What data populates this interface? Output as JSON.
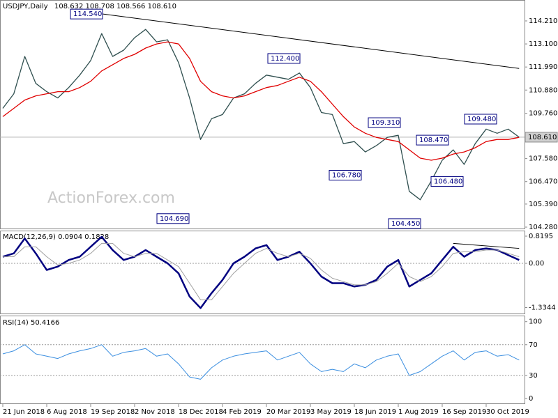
{
  "chart_data": [
    {
      "type": "line",
      "title": "USDJPY,Daily",
      "ohlc": "108.632 108.708 108.566 108.610",
      "watermark": "ActionForex.com",
      "categories": [
        "21 Jun 2018",
        null,
        null,
        null,
        "6 Aug 2018",
        null,
        null,
        null,
        "19 Sep 2018",
        null,
        null,
        null,
        "2 Nov 2018",
        null,
        null,
        null,
        "18 Dec 2018",
        null,
        null,
        null,
        "4 Feb 2019",
        null,
        null,
        null,
        "20 Mar 2019",
        null,
        null,
        null,
        "3 May 2019",
        null,
        null,
        null,
        "18 Jun 2019",
        null,
        null,
        null,
        "1 Aug 2019",
        null,
        null,
        null,
        "16 Sep 2019",
        null,
        null,
        null,
        "30 Oct 2019",
        null,
        null,
        null
      ],
      "series": [
        {
          "color": "#2f4f4f",
          "values": [
            110.0,
            110.7,
            112.5,
            111.2,
            110.8,
            110.5,
            111.0,
            111.6,
            112.3,
            113.6,
            112.5,
            112.8,
            113.4,
            113.8,
            113.2,
            113.3,
            112.2,
            110.5,
            108.5,
            109.5,
            109.7,
            110.5,
            110.7,
            111.2,
            111.6,
            111.5,
            111.4,
            111.7,
            111.0,
            109.8,
            109.7,
            108.3,
            108.4,
            107.9,
            108.2,
            108.6,
            108.7,
            106.0,
            105.6,
            106.5,
            107.5,
            108.0,
            107.3,
            108.3,
            109.0,
            108.8,
            109.0,
            108.61
          ]
        },
        {
          "color": "#e00000",
          "values": [
            109.6,
            110.0,
            110.4,
            110.6,
            110.7,
            110.8,
            110.8,
            111.0,
            111.3,
            111.8,
            112.1,
            112.4,
            112.6,
            112.9,
            113.1,
            113.2,
            113.1,
            112.4,
            111.3,
            110.8,
            110.6,
            110.5,
            110.6,
            110.8,
            111.0,
            111.1,
            111.3,
            111.5,
            111.3,
            110.8,
            110.2,
            109.6,
            109.1,
            108.8,
            108.6,
            108.5,
            108.4,
            108.0,
            107.6,
            107.5,
            107.6,
            107.8,
            107.9,
            108.1,
            108.4,
            108.5,
            108.5,
            108.6
          ]
        }
      ],
      "trendline": {
        "color": "#000000",
        "points": [
          {
            "i": 9,
            "value": 114.55
          },
          {
            "i": 47,
            "value": 111.92
          }
        ]
      },
      "annotations": [
        {
          "value": 114.54,
          "label": "114.540"
        },
        {
          "value": 104.69,
          "label": "104.690"
        },
        {
          "value": 112.4,
          "label": "112.400"
        },
        {
          "value": 109.31,
          "label": "109.310"
        },
        {
          "value": 106.78,
          "label": "106.780"
        },
        {
          "value": 108.47,
          "label": "108.470"
        },
        {
          "value": 106.48,
          "label": "106.480"
        },
        {
          "value": 104.45,
          "label": "104.450"
        },
        {
          "value": 109.48,
          "label": "109.480"
        }
      ],
      "last_price": {
        "value": 108.61,
        "label": "108.610"
      },
      "ylim": [
        104.213,
        115.216
      ],
      "yticks": [
        {
          "value": 114.21,
          "label": "114.210"
        },
        {
          "value": 113.1,
          "label": "113.100"
        },
        {
          "value": 111.99,
          "label": "111.990"
        },
        {
          "value": 110.88,
          "label": "110.880"
        },
        {
          "value": 109.76,
          "label": "109.760"
        },
        {
          "value": 107.58,
          "label": "107.580"
        },
        {
          "value": 106.47,
          "label": "106.470"
        },
        {
          "value": 105.39,
          "label": "105.390"
        },
        {
          "value": 104.28,
          "label": "104.280"
        }
      ]
    },
    {
      "type": "line",
      "title": "MACD(12,26,9) 0.0904 0.1828",
      "series": [
        {
          "color": "#000080",
          "width": 2.5,
          "values": [
            0.2,
            0.3,
            0.75,
            0.3,
            -0.2,
            -0.1,
            0.1,
            0.2,
            0.5,
            0.8,
            0.4,
            0.1,
            0.2,
            0.4,
            0.2,
            0.0,
            -0.3,
            -1.0,
            -1.35,
            -0.9,
            -0.5,
            0.0,
            0.2,
            0.45,
            0.55,
            0.1,
            0.2,
            0.35,
            0.0,
            -0.4,
            -0.6,
            -0.6,
            -0.7,
            -0.65,
            -0.5,
            -0.1,
            0.1,
            -0.7,
            -0.5,
            -0.3,
            0.1,
            0.5,
            0.2,
            0.4,
            0.45,
            0.4,
            0.25,
            0.1
          ]
        },
        {
          "color": "#a0a0a0",
          "width": 1,
          "values": [
            0.2,
            0.2,
            0.5,
            0.5,
            0.2,
            -0.05,
            0.0,
            0.1,
            0.3,
            0.6,
            0.6,
            0.3,
            0.2,
            0.3,
            0.3,
            0.1,
            -0.1,
            -0.6,
            -1.1,
            -1.1,
            -0.7,
            -0.3,
            0.0,
            0.3,
            0.45,
            0.3,
            0.2,
            0.3,
            0.15,
            -0.2,
            -0.45,
            -0.55,
            -0.65,
            -0.65,
            -0.55,
            -0.3,
            0.0,
            -0.4,
            -0.55,
            -0.4,
            -0.1,
            0.3,
            0.35,
            0.35,
            0.4,
            0.4,
            0.3,
            0.2
          ]
        }
      ],
      "trendline": {
        "color": "#000000",
        "points": [
          {
            "i": 41,
            "value": 0.6
          },
          {
            "i": 47,
            "value": 0.45
          }
        ]
      },
      "levels": [
        0
      ],
      "ylim": [
        -1.513,
        0.966
      ],
      "yticks": [
        0.8195,
        {
          "value": 0,
          "label": "0.00"
        },
        -1.3344
      ]
    },
    {
      "type": "line",
      "title": "RSI(14) 50.4166",
      "series": [
        {
          "color": "#3a8ee0",
          "width": 1,
          "values": [
            58,
            62,
            70,
            58,
            55,
            52,
            58,
            62,
            65,
            70,
            55,
            60,
            62,
            65,
            55,
            58,
            45,
            28,
            25,
            40,
            50,
            55,
            58,
            60,
            62,
            50,
            55,
            60,
            45,
            35,
            38,
            35,
            45,
            40,
            50,
            55,
            58,
            30,
            35,
            45,
            55,
            62,
            50,
            60,
            62,
            55,
            57,
            50
          ]
        }
      ],
      "levels": [
        70,
        30
      ],
      "ylim": [
        -7.3,
        107
      ],
      "yticks": [
        100,
        70,
        30,
        0
      ]
    }
  ]
}
